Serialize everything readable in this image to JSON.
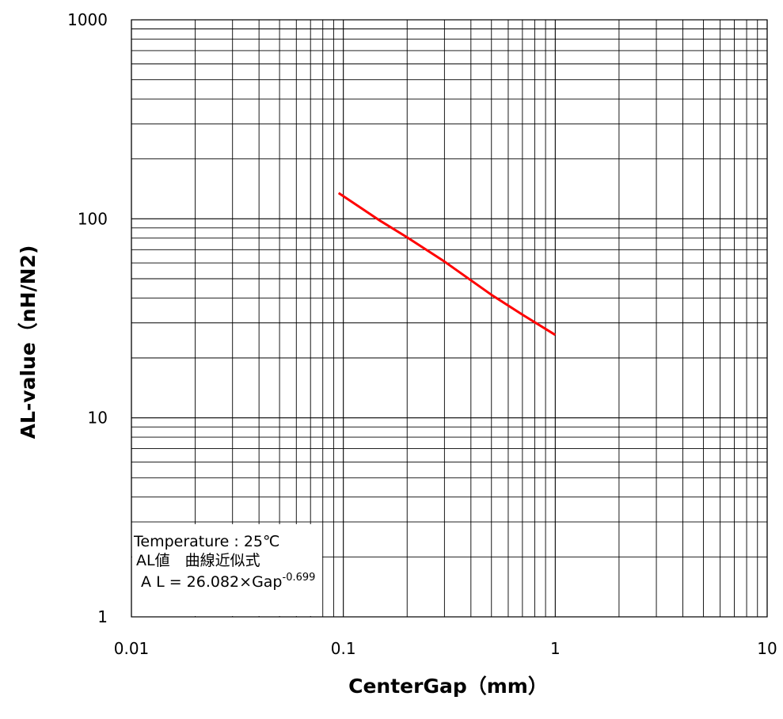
{
  "chart_data": {
    "type": "line",
    "title": "",
    "xlabel": "CenterGap（mm）",
    "ylabel": "AL-value（nH/N2)",
    "x_scale": "log",
    "y_scale": "log",
    "xlim": [
      0.01,
      10
    ],
    "ylim": [
      1,
      1000
    ],
    "x_ticks": [
      "0.01",
      "0.1",
      "1",
      "10"
    ],
    "y_ticks": [
      "1",
      "10",
      "100",
      "1000"
    ],
    "grid": true,
    "legend": "none",
    "series": [
      {
        "color": "#ff0000",
        "x": [
          0.095,
          0.15,
          0.2,
          0.3,
          0.5,
          0.7,
          1.0
        ],
        "y": [
          134.8,
          97.4,
          80.7,
          61.0,
          41.5,
          33.0,
          26.1
        ]
      }
    ],
    "annotation": {
      "line1": "Temperature : 25℃",
      "line2": "AL値　曲線近似式",
      "line3": " A L = 26.082×Gap",
      "exponent": "-0.699"
    }
  }
}
